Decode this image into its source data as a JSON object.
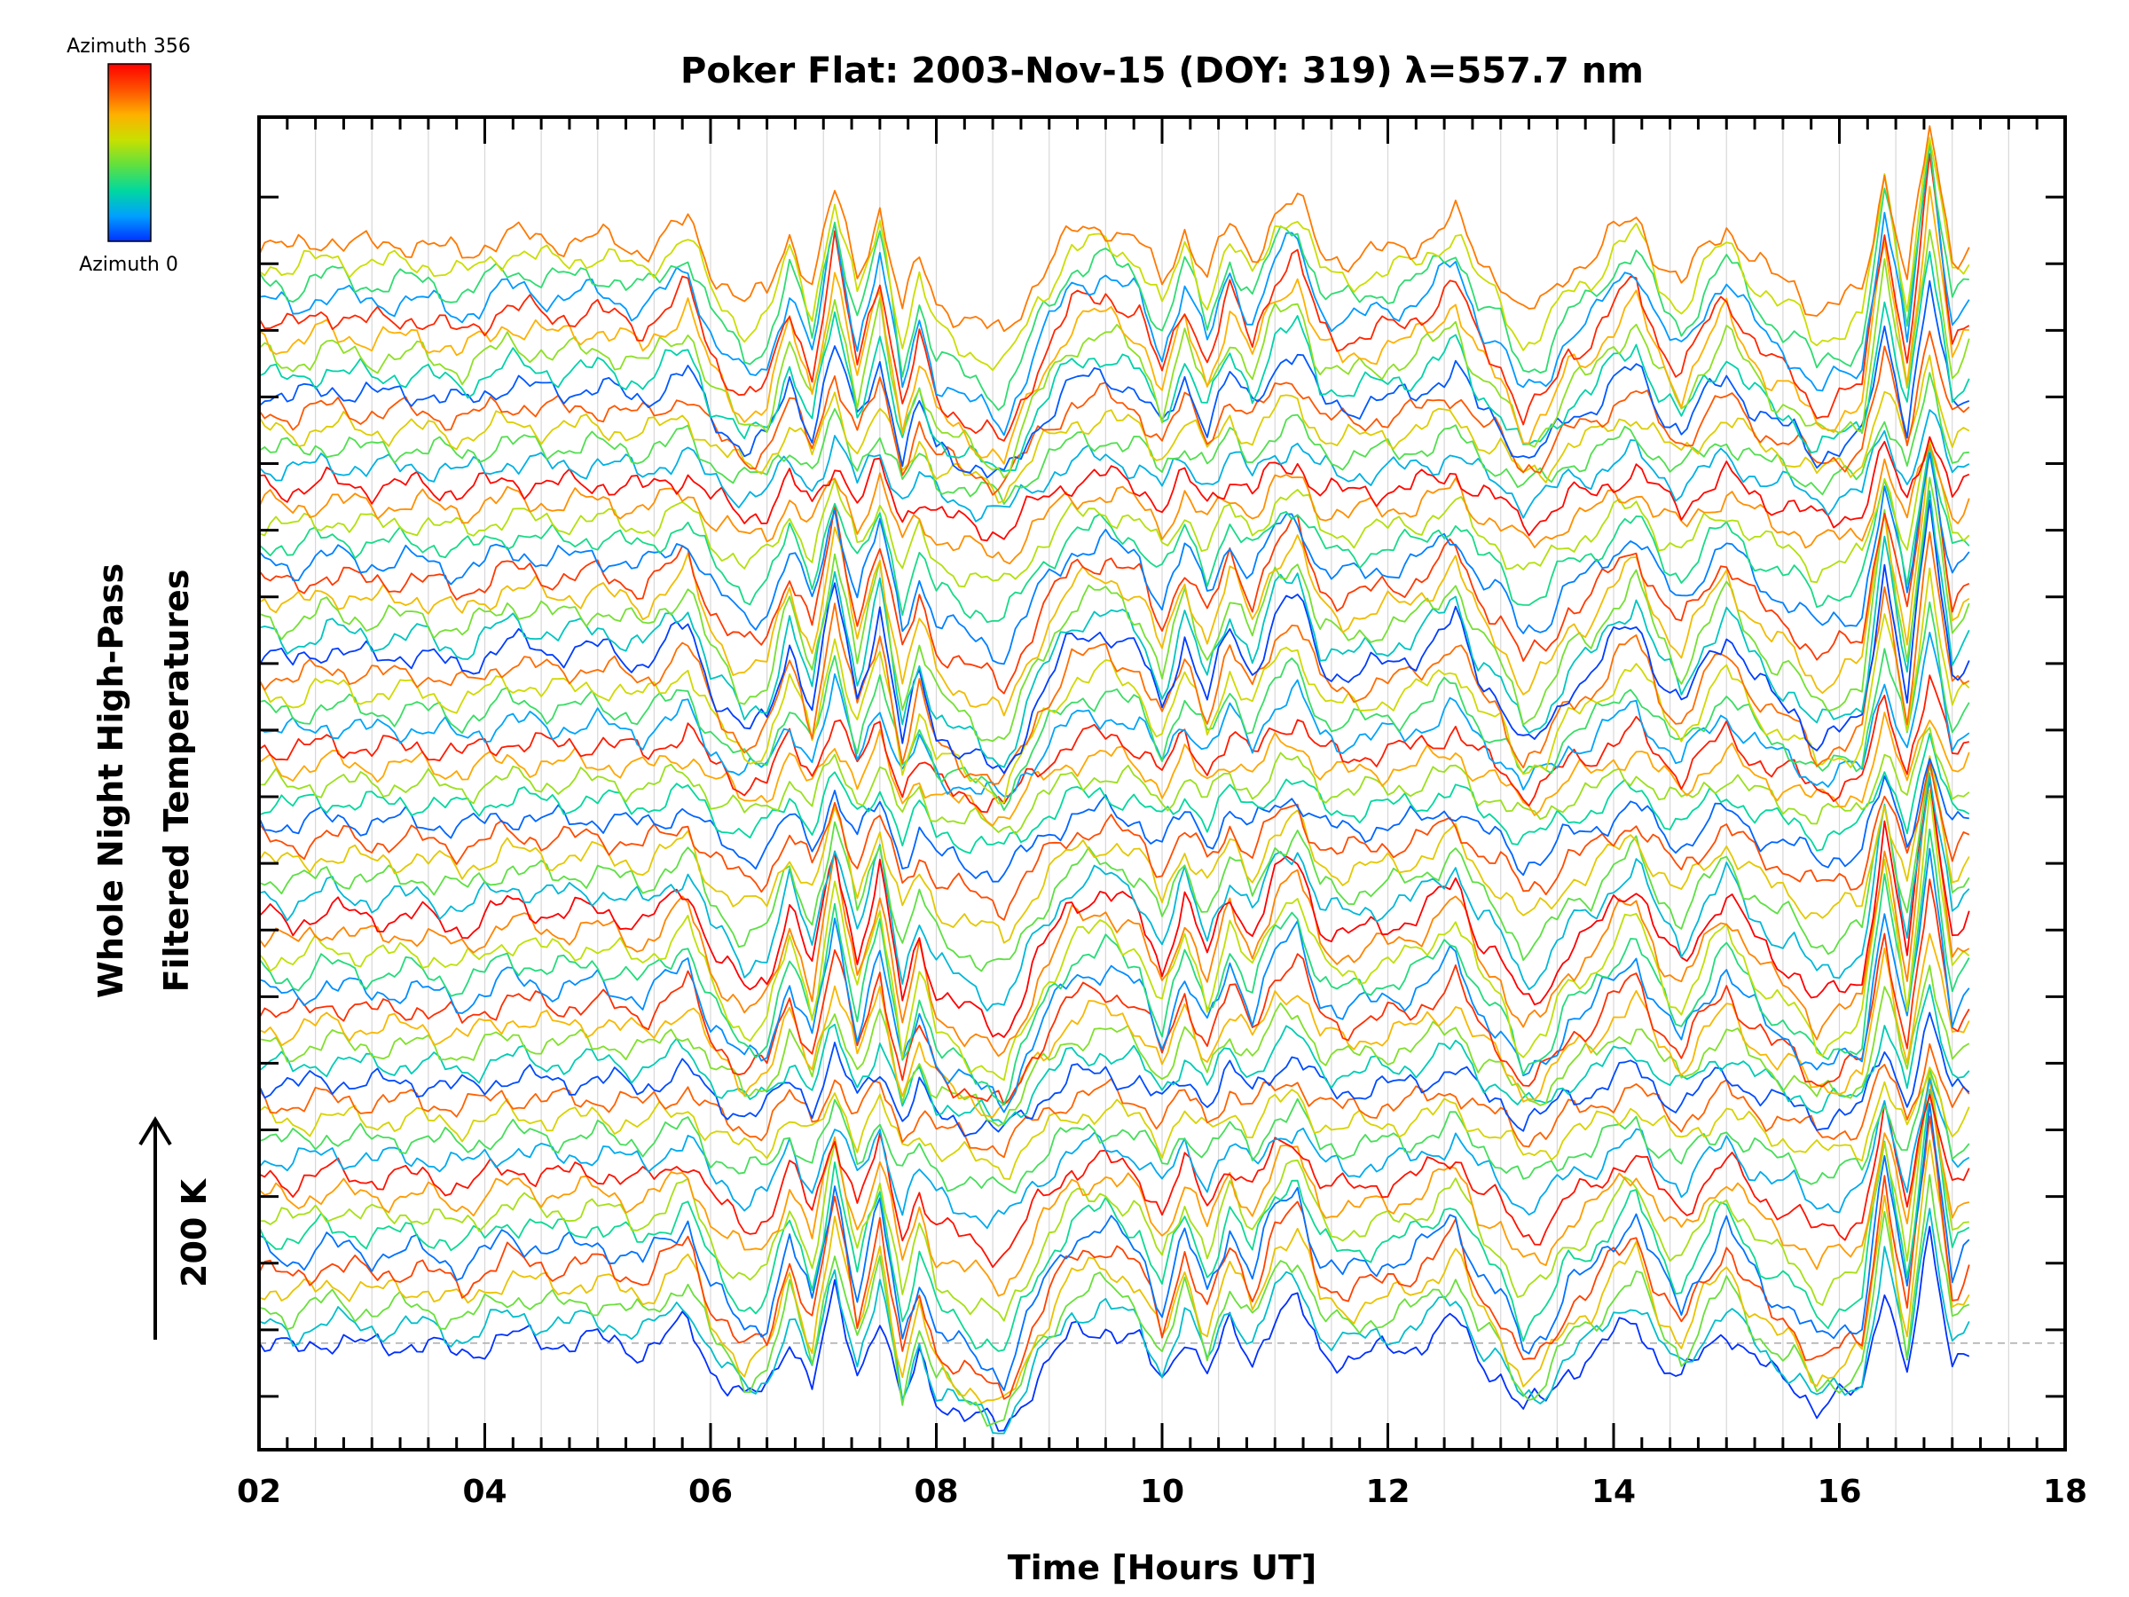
{
  "chart_data": {
    "type": "line",
    "title": "Poker Flat: 2003-Nov-15 (DOY: 319) λ=557.7 nm",
    "xlabel": "Time [Hours UT]",
    "ylabel_line1": "Whole Night High-Pass",
    "ylabel_line2": "Filtered Temperatures",
    "scale_label": "200 K",
    "xlim": [
      2,
      18
    ],
    "x_tick_labels": [
      "02",
      "04",
      "06",
      "08",
      "10",
      "12",
      "14",
      "16",
      "18"
    ],
    "x_ticks": [
      2,
      4,
      6,
      8,
      10,
      12,
      14,
      16,
      18
    ],
    "x_range_data": [
      2.0,
      17.15
    ],
    "ylim_relative_K": [
      -100,
      1150
    ],
    "series_offset_K": 17.5,
    "series_count": 60,
    "baseline_K": 0,
    "grid": true,
    "colorbar": {
      "top_label": "Azimuth 356",
      "bottom_label": "Azimuth 0",
      "min": 0,
      "max": 356,
      "placement": "top-left",
      "colors": [
        "#0030ff",
        "#00a0ff",
        "#00d8a0",
        "#60e040",
        "#c8e000",
        "#ffb000",
        "#ff5000",
        "#ff0000"
      ]
    },
    "profile_x": [
      2.0,
      2.3,
      2.6,
      3.0,
      3.4,
      3.8,
      4.2,
      4.6,
      5.0,
      5.4,
      5.8,
      6.0,
      6.3,
      6.5,
      6.7,
      6.9,
      7.1,
      7.3,
      7.5,
      7.7,
      7.85,
      8.0,
      8.3,
      8.6,
      8.9,
      9.2,
      9.5,
      9.8,
      10.0,
      10.2,
      10.4,
      10.6,
      10.8,
      11.0,
      11.2,
      11.4,
      11.6,
      11.8,
      12.0,
      12.2,
      12.4,
      12.6,
      12.8,
      13.0,
      13.2,
      13.4,
      13.6,
      13.8,
      14.0,
      14.2,
      14.4,
      14.6,
      14.8,
      15.0,
      15.2,
      15.4,
      15.6,
      15.8,
      16.0,
      16.2,
      16.4,
      16.6,
      16.8,
      17.0,
      17.15
    ],
    "profile_y": [
      0,
      -10,
      5,
      -5,
      0,
      -15,
      10,
      0,
      5,
      -10,
      25,
      -30,
      -70,
      -60,
      10,
      -50,
      60,
      -40,
      40,
      -80,
      -20,
      -70,
      -90,
      -110,
      -40,
      10,
      20,
      0,
      -50,
      15,
      -40,
      20,
      -20,
      35,
      50,
      -10,
      -20,
      -15,
      -10,
      -5,
      10,
      30,
      -20,
      -40,
      -85,
      -70,
      -30,
      -20,
      10,
      30,
      -20,
      -50,
      -10,
      20,
      -15,
      -40,
      -50,
      -80,
      -70,
      -60,
      80,
      -40,
      130,
      -20,
      0
    ]
  }
}
